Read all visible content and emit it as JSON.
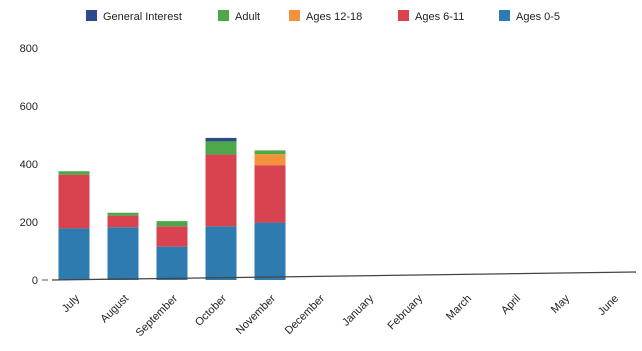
{
  "chart_data": {
    "type": "bar",
    "stacked": true,
    "categories": [
      "July",
      "August",
      "September",
      "October",
      "November",
      "December",
      "January",
      "February",
      "March",
      "April",
      "May",
      "June"
    ],
    "series": [
      {
        "name": "Ages 0-5",
        "color": "#2e7bb0",
        "values": [
          178,
          182,
          115,
          185,
          198,
          0,
          0,
          0,
          0,
          0,
          0,
          0
        ]
      },
      {
        "name": "Ages 6-11",
        "color": "#d9434f",
        "values": [
          185,
          40,
          70,
          248,
          198,
          0,
          0,
          0,
          0,
          0,
          0,
          0
        ]
      },
      {
        "name": "Ages 12-18",
        "color": "#f4923a",
        "values": [
          0,
          0,
          0,
          0,
          38,
          0,
          0,
          0,
          0,
          0,
          0,
          0
        ]
      },
      {
        "name": "Adult",
        "color": "#4da84a",
        "values": [
          12,
          10,
          18,
          45,
          13,
          0,
          0,
          0,
          0,
          0,
          0,
          0
        ]
      },
      {
        "name": "General Interest",
        "color": "#2f4a8a",
        "values": [
          0,
          0,
          0,
          12,
          0,
          0,
          0,
          0,
          0,
          0,
          0,
          0
        ]
      }
    ],
    "legend": [
      "General Interest",
      "Adult",
      "Ages 12-18",
      "Ages 6-11",
      "Ages 0-5"
    ],
    "yticks": [
      "0",
      "200",
      "400",
      "600",
      "800"
    ],
    "ylim": [
      0,
      800
    ],
    "legend_position": "top",
    "grid": false
  }
}
